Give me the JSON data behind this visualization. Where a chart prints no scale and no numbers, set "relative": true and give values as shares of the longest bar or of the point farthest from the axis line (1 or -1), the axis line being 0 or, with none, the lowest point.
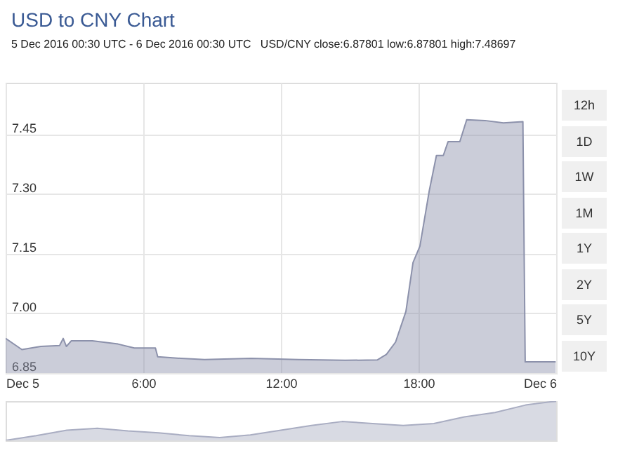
{
  "chart_data": [
    {
      "type": "area",
      "title": "USD to CNY Chart",
      "subtitle": "5 Dec 2016 00:30 UTC - 6 Dec 2016 00:30 UTC   USD/CNY close:6.87801 low:6.87801 high:7.48697",
      "annotations": [
        "12h",
        "1D",
        "1W",
        "1M",
        "1Y",
        "2Y",
        "5Y",
        "10Y"
      ],
      "x": [
        0,
        0.71,
        1.53,
        2.35,
        2.51,
        2.65,
        2.86,
        3.78,
        4.9,
        5.61,
        6.53,
        6.63,
        7.65,
        8.67,
        10.7,
        12.76,
        14.8,
        16.2,
        16.6,
        17.0,
        17.45,
        17.76,
        18.06,
        18.47,
        18.78,
        19.08,
        19.29,
        19.8,
        20.1,
        20.9,
        21.7,
        22.55,
        22.65,
        23.98
      ],
      "series": [
        {
          "color": "#8c91ab",
          "values": [
            6.937,
            6.909,
            6.917,
            6.919,
            6.937,
            6.917,
            6.931,
            6.931,
            6.923,
            6.913,
            6.913,
            6.891,
            6.887,
            6.884,
            6.887,
            6.884,
            6.882,
            6.883,
            6.897,
            6.928,
            7.005,
            7.128,
            7.169,
            7.309,
            7.397,
            7.397,
            7.432,
            7.432,
            7.487,
            7.485,
            7.479,
            7.482,
            6.878,
            6.878
          ]
        }
      ],
      "xlim": [
        0,
        24
      ],
      "xticks": [
        {
          "value": 0,
          "label": "Dec 5"
        },
        {
          "value": 6,
          "label": "6:00"
        },
        {
          "value": 12,
          "label": "12:00"
        },
        {
          "value": 18,
          "label": "18:00"
        },
        {
          "value": 24,
          "label": "Dec 6"
        }
      ],
      "ylim": [
        6.85,
        7.58
      ],
      "yticks": [
        {
          "value": 6.85,
          "label": "6.85"
        },
        {
          "value": 7,
          "label": "7.00"
        },
        {
          "value": 7.15,
          "label": "7.15"
        },
        {
          "value": 7.3,
          "label": "7.30"
        },
        {
          "value": 7.45,
          "label": "7.45"
        }
      ],
      "grid": true
    },
    {
      "type": "area",
      "relative": true,
      "categories": [
        null,
        null,
        null,
        null,
        null,
        null,
        null,
        null,
        null,
        null,
        null,
        null,
        null,
        null,
        null,
        null,
        null,
        null,
        null
      ],
      "series": [
        {
          "color": "#a9adc2",
          "values": [
            0,
            0.12,
            0.26,
            0.31,
            0.24,
            0.19,
            0.12,
            0.07,
            0.14,
            0.26,
            0.38,
            0.48,
            0.43,
            0.38,
            0.43,
            0.6,
            0.71,
            0.9,
            1
          ]
        }
      ]
    }
  ]
}
